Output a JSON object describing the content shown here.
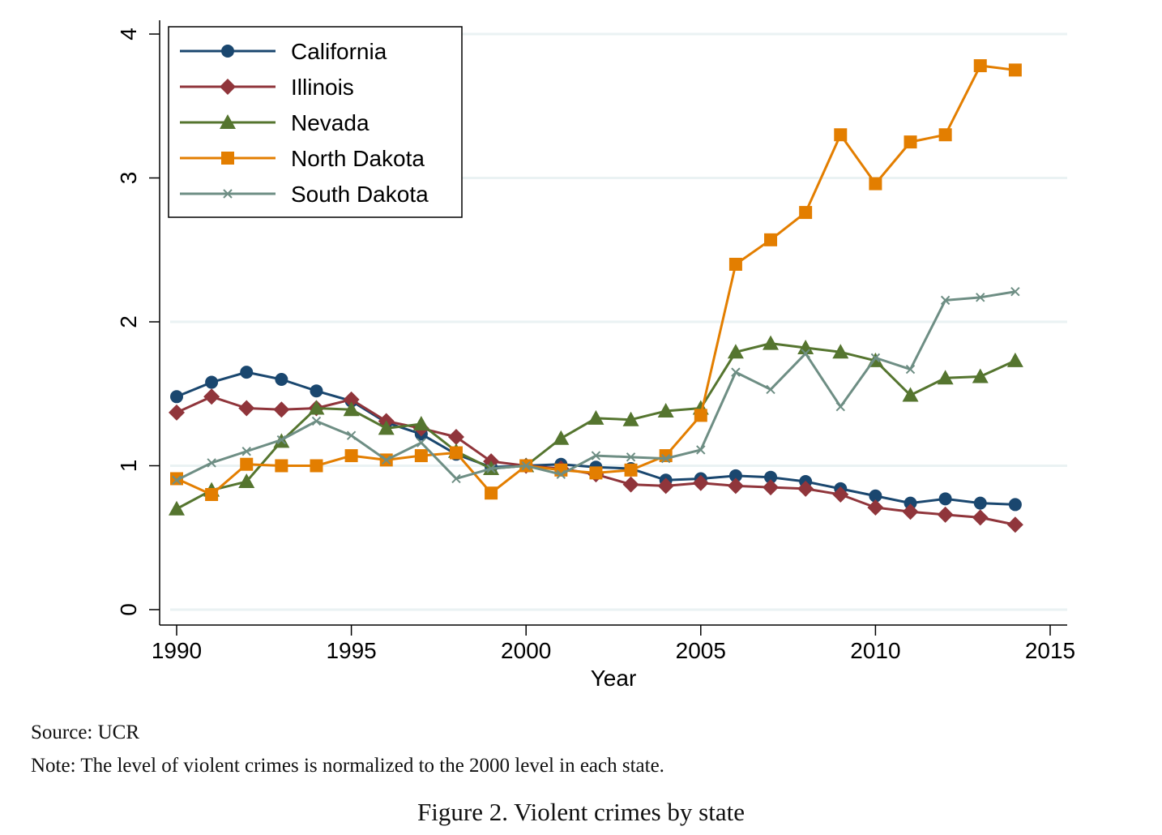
{
  "chart_data": {
    "type": "line",
    "title": "",
    "xlabel": "Year",
    "ylabel": "",
    "xlim": [
      1990,
      2015
    ],
    "ylim": [
      0,
      4
    ],
    "xticks": [
      1990,
      1995,
      2000,
      2005,
      2010,
      2015
    ],
    "yticks": [
      0,
      1,
      2,
      3,
      4
    ],
    "grid": "horizontal",
    "legend_position": "top-left",
    "x": [
      1990,
      1991,
      1992,
      1993,
      1994,
      1995,
      1996,
      1997,
      1998,
      1999,
      2000,
      2001,
      2002,
      2003,
      2004,
      2005,
      2006,
      2007,
      2008,
      2009,
      2010,
      2011,
      2012,
      2013,
      2014
    ],
    "series": [
      {
        "name": "California",
        "color": "#1a476f",
        "marker": "circle",
        "values": [
          1.48,
          1.58,
          1.65,
          1.6,
          1.52,
          1.45,
          1.3,
          1.22,
          1.08,
          0.99,
          1.0,
          1.01,
          0.99,
          0.98,
          0.9,
          0.91,
          0.93,
          0.92,
          0.89,
          0.84,
          0.79,
          0.74,
          0.77,
          0.74,
          0.73
        ]
      },
      {
        "name": "Illinois",
        "color": "#90353b",
        "marker": "diamond",
        "values": [
          1.37,
          1.48,
          1.4,
          1.39,
          1.4,
          1.46,
          1.31,
          1.26,
          1.2,
          1.03,
          1.0,
          0.98,
          0.94,
          0.87,
          0.86,
          0.88,
          0.86,
          0.85,
          0.84,
          0.8,
          0.71,
          0.68,
          0.66,
          0.64,
          0.59
        ]
      },
      {
        "name": "Nevada",
        "color": "#55752f",
        "marker": "triangle",
        "values": [
          0.7,
          0.83,
          0.89,
          1.17,
          1.4,
          1.39,
          1.26,
          1.29,
          1.1,
          0.98,
          1.0,
          1.19,
          1.33,
          1.32,
          1.38,
          1.4,
          1.79,
          1.85,
          1.82,
          1.79,
          1.73,
          1.49,
          1.61,
          1.62,
          1.73
        ]
      },
      {
        "name": "North Dakota",
        "color": "#e37e00",
        "marker": "square",
        "values": [
          0.91,
          0.8,
          1.01,
          1.0,
          1.0,
          1.07,
          1.04,
          1.07,
          1.09,
          0.81,
          1.0,
          0.97,
          0.95,
          0.97,
          1.07,
          1.35,
          2.4,
          2.57,
          2.76,
          3.3,
          2.96,
          3.25,
          3.3,
          3.78,
          3.75
        ]
      },
      {
        "name": "South Dakota",
        "color": "#6e8e84",
        "marker": "x",
        "values": [
          0.9,
          1.02,
          1.1,
          1.18,
          1.31,
          1.21,
          1.04,
          1.16,
          0.91,
          0.98,
          1.0,
          0.94,
          1.07,
          1.06,
          1.05,
          1.11,
          1.65,
          1.53,
          1.78,
          1.41,
          1.75,
          1.67,
          2.15,
          2.17,
          2.21
        ]
      }
    ]
  },
  "footer": {
    "source": "Source: UCR",
    "note": "Note: The level of violent crimes is normalized to the 2000 level in each state.",
    "caption": "Figure 2. Violent crimes by state"
  }
}
